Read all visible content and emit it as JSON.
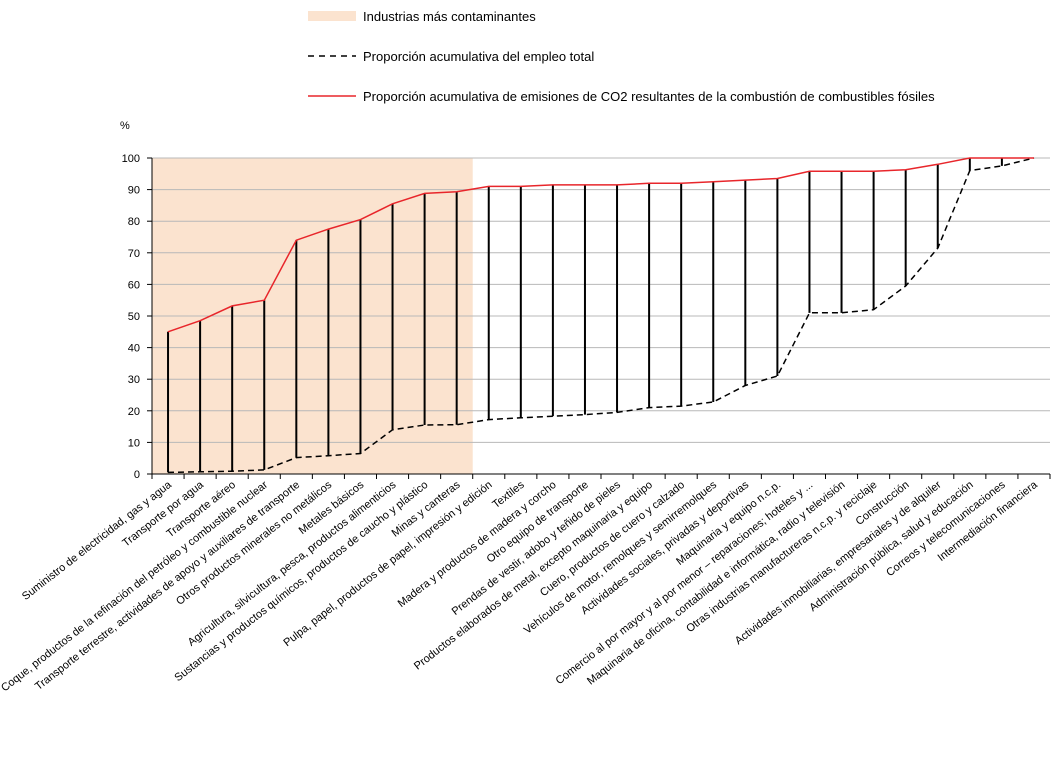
{
  "chart_data": {
    "type": "line",
    "unit_label": "%",
    "ylim": [
      0,
      100
    ],
    "yticks": [
      0,
      10,
      20,
      30,
      40,
      50,
      60,
      70,
      80,
      90,
      100
    ],
    "grid": true,
    "legend_position": "top",
    "highlight": {
      "label": "Industrias más contaminantes",
      "from_index": 0,
      "to_index": 9,
      "color": "#fbe3cf"
    },
    "categories": [
      "Suministro de electricidad, gas y agua",
      "Transporte por agua",
      "Transporte aéreo",
      "Coque, productos de la refinación del petróleo y combustible nuclear",
      "Transporte terrestre, actividades de apoyo y auxiliares de transporte",
      "Otros productos minerales no metálicos",
      "Metales básicos",
      "Agricultura, silvicultura, pesca, productos alimenticios",
      "Sustancias y productos químicos, productos de caucho y plástico",
      "Minas y canteras",
      "Pulpa, papel, productos de papel, impresión y edición",
      "Textiles",
      "Madera y productos de madera y corcho",
      "Otro equipo de transporte",
      "Prendas de vestir, adobo y teñido de pieles",
      "Productos elaborados de metal, excepto maquinaria y equipo",
      "Cuero, productos de cuero y calzado",
      "Vehículos de motor, remolques y semirremolques",
      "Actividades sociales, privadas y deportivas",
      "Maquinaria y equipo n.c.p.",
      "Comercio al por mayor y al por menor – reparaciones; hoteles y ...",
      "Maquinaria de oficina, contabilidad e informática, radio y televisión",
      "Otras industrias manufactureras n.c.p. y reciclaje",
      "Construcción",
      "Actividades inmobiliarias, empresariales y de alquiler",
      "Administración pública, salud y educación",
      "Correos y telecomunicaciones",
      "Intermediación financiera"
    ],
    "series": [
      {
        "name": "Proporción acumulativa del empleo total",
        "style": "dashed",
        "color": "#000000",
        "values": [
          0.5,
          0.7,
          0.9,
          1.3,
          5.2,
          5.8,
          6.5,
          14,
          15.5,
          15.6,
          17.2,
          17.8,
          18.3,
          18.8,
          19.5,
          21,
          21.5,
          22.8,
          28,
          31,
          51,
          51,
          52,
          59.5,
          71.5,
          96,
          97.5,
          100
        ]
      },
      {
        "name": "Proporción acumulativa de emisiones de CO2 resultantes de la combustión de combustibles fósiles",
        "style": "solid",
        "color": "#e8262b",
        "values": [
          45,
          48.5,
          53.2,
          55,
          74,
          77.5,
          80.5,
          85.5,
          88.8,
          89.3,
          91,
          91,
          91.5,
          91.5,
          91.5,
          92,
          92,
          92.5,
          93,
          93.5,
          95.8,
          95.8,
          95.8,
          96.3,
          98,
          100,
          100,
          100
        ]
      }
    ]
  }
}
